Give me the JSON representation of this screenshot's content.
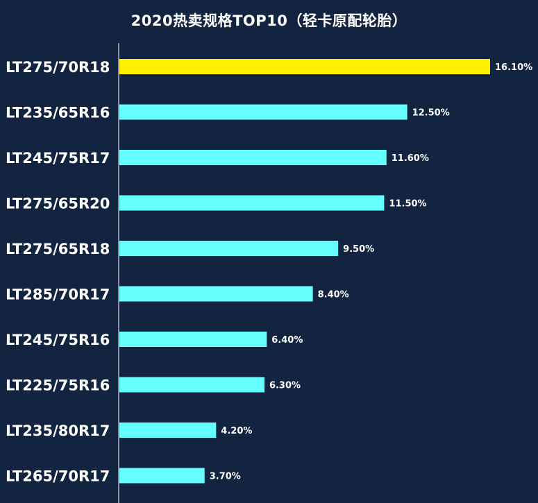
{
  "chart_data": {
    "type": "bar",
    "orientation": "horizontal",
    "title": "2020热卖规格TOP10（轻卡原配轮胎）",
    "categories": [
      "LT275/70R18",
      "LT235/65R16",
      "LT245/75R17",
      "LT275/65R20",
      "LT275/65R18",
      "LT285/70R17",
      "LT245/75R16",
      "LT225/75R16",
      "LT235/80R17",
      "LT265/70R17"
    ],
    "values": [
      16.1,
      12.5,
      11.6,
      11.5,
      9.5,
      8.4,
      6.4,
      6.3,
      4.2,
      3.7
    ],
    "value_labels": [
      "16.10%",
      "12.50%",
      "11.60%",
      "11.50%",
      "9.50%",
      "8.40%",
      "6.40%",
      "6.30%",
      "4.20%",
      "3.70%"
    ],
    "xlim": [
      0,
      16.1
    ],
    "grid": false,
    "legend": "none",
    "colors": {
      "background": "#132440",
      "highlight_bar": "#FFF200",
      "bar": "#66FFFF",
      "axis": "#FFFFFF",
      "text": "#FFFFFF"
    }
  }
}
